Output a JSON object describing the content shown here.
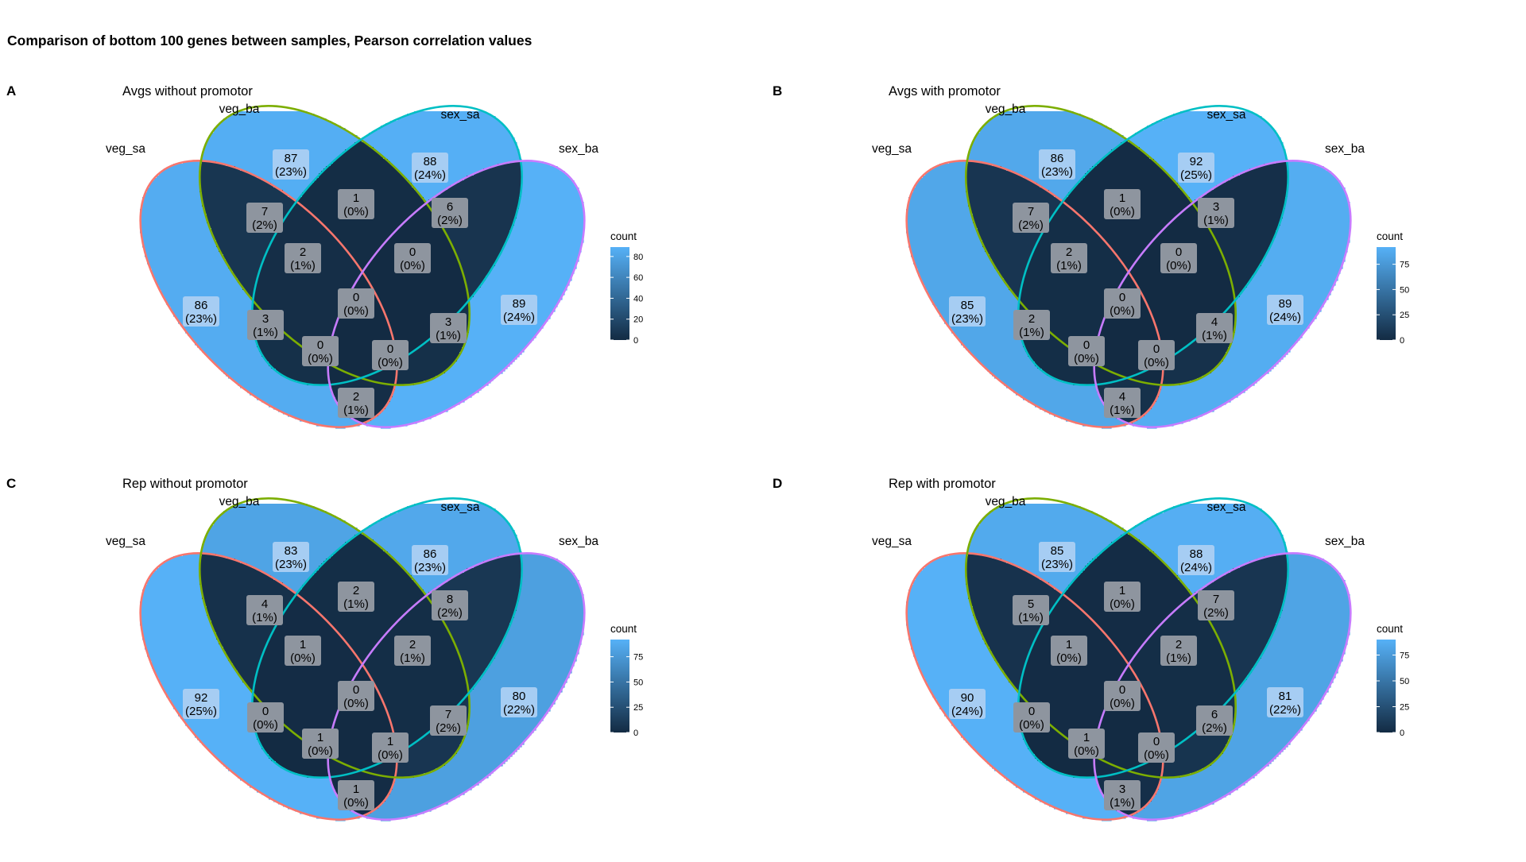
{
  "title": "Comparison of bottom 100 genes between samples, Pearson correlation values",
  "set_names": [
    "veg_sa",
    "veg_ba",
    "sex_sa",
    "sex_ba"
  ],
  "set_colors": [
    "#F8766D",
    "#7CAE00",
    "#00BFC4",
    "#C77CFF"
  ],
  "legend_title": "count",
  "color_scale": {
    "low": "#132B43",
    "high": "#56B1F7"
  },
  "panels": [
    {
      "letter": "A",
      "subtitle": "Avgs without promotor",
      "legend_ticks": [
        0,
        20,
        40,
        60,
        80
      ],
      "legend_max": 89,
      "regions": {
        "A": [
          "86",
          "(23%)"
        ],
        "B": [
          "87",
          "(23%)"
        ],
        "C": [
          "88",
          "(24%)"
        ],
        "D": [
          "89",
          "(24%)"
        ],
        "AB": [
          "7",
          "(2%)"
        ],
        "BC": [
          "1",
          "(0%)"
        ],
        "CD": [
          "6",
          "(2%)"
        ],
        "ABC": [
          "2",
          "(1%)"
        ],
        "BCD": [
          "0",
          "(0%)"
        ],
        "ABCD": [
          "0",
          "(0%)"
        ],
        "AC": [
          "3",
          "(1%)"
        ],
        "BD": [
          "3",
          "(1%)"
        ],
        "ACD": [
          "0",
          "(0%)"
        ],
        "ABD": [
          "0",
          "(0%)"
        ],
        "AD": [
          "2",
          "(1%)"
        ]
      }
    },
    {
      "letter": "B",
      "subtitle": "Avgs with promotor",
      "legend_ticks": [
        0,
        25,
        50,
        75
      ],
      "legend_max": 92,
      "regions": {
        "A": [
          "85",
          "(23%)"
        ],
        "B": [
          "86",
          "(23%)"
        ],
        "C": [
          "92",
          "(25%)"
        ],
        "D": [
          "89",
          "(24%)"
        ],
        "AB": [
          "7",
          "(2%)"
        ],
        "BC": [
          "1",
          "(0%)"
        ],
        "CD": [
          "3",
          "(1%)"
        ],
        "ABC": [
          "2",
          "(1%)"
        ],
        "BCD": [
          "0",
          "(0%)"
        ],
        "ABCD": [
          "0",
          "(0%)"
        ],
        "AC": [
          "2",
          "(1%)"
        ],
        "BD": [
          "4",
          "(1%)"
        ],
        "ACD": [
          "0",
          "(0%)"
        ],
        "ABD": [
          "0",
          "(0%)"
        ],
        "AD": [
          "4",
          "(1%)"
        ]
      }
    },
    {
      "letter": "C",
      "subtitle": "Rep without promotor",
      "legend_ticks": [
        0,
        25,
        50,
        75
      ],
      "legend_max": 92,
      "regions": {
        "A": [
          "92",
          "(25%)"
        ],
        "B": [
          "83",
          "(23%)"
        ],
        "C": [
          "86",
          "(23%)"
        ],
        "D": [
          "80",
          "(22%)"
        ],
        "AB": [
          "4",
          "(1%)"
        ],
        "BC": [
          "2",
          "(1%)"
        ],
        "CD": [
          "8",
          "(2%)"
        ],
        "ABC": [
          "1",
          "(0%)"
        ],
        "BCD": [
          "2",
          "(1%)"
        ],
        "ABCD": [
          "0",
          "(0%)"
        ],
        "AC": [
          "0",
          "(0%)"
        ],
        "BD": [
          "7",
          "(2%)"
        ],
        "ACD": [
          "1",
          "(0%)"
        ],
        "ABD": [
          "1",
          "(0%)"
        ],
        "AD": [
          "1",
          "(0%)"
        ]
      }
    },
    {
      "letter": "D",
      "subtitle": "Rep with promotor",
      "legend_ticks": [
        0,
        25,
        50,
        75
      ],
      "legend_max": 90,
      "regions": {
        "A": [
          "90",
          "(24%)"
        ],
        "B": [
          "85",
          "(23%)"
        ],
        "C": [
          "88",
          "(24%)"
        ],
        "D": [
          "81",
          "(22%)"
        ],
        "AB": [
          "5",
          "(1%)"
        ],
        "BC": [
          "1",
          "(0%)"
        ],
        "CD": [
          "7",
          "(2%)"
        ],
        "ABC": [
          "1",
          "(0%)"
        ],
        "BCD": [
          "2",
          "(1%)"
        ],
        "ABCD": [
          "0",
          "(0%)"
        ],
        "AC": [
          "0",
          "(0%)"
        ],
        "BD": [
          "6",
          "(2%)"
        ],
        "ACD": [
          "1",
          "(0%)"
        ],
        "ABD": [
          "0",
          "(0%)"
        ],
        "AD": [
          "3",
          "(1%)"
        ]
      }
    }
  ]
}
